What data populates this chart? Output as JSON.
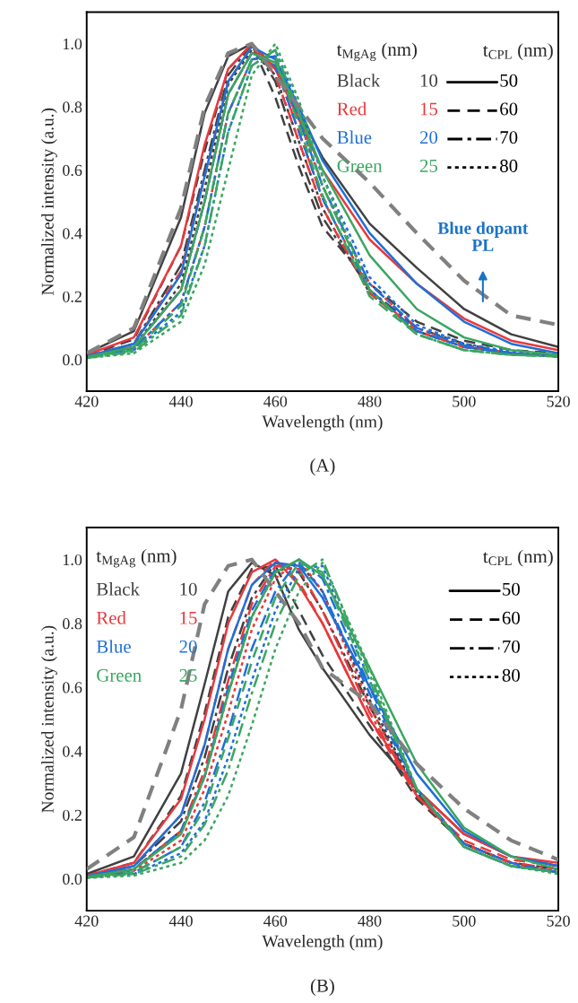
{
  "chart_data": [
    {
      "type": "line",
      "xlabel": "Wavelength (nm)",
      "ylabel": "Normalized intensity (a.u.)",
      "xlim": [
        420,
        520
      ],
      "xticks": [
        420,
        440,
        460,
        480,
        500,
        520
      ],
      "ylim": [
        -0.1,
        1.1
      ],
      "yticks": [
        {
          "value": 0,
          "label": "0.0"
        },
        {
          "value": 0.2,
          "label": "0.2"
        },
        {
          "value": 0.4,
          "label": "0.4"
        },
        {
          "value": 0.6,
          "label": "0.6"
        },
        {
          "value": 0.8,
          "label": "0.8"
        },
        {
          "value": 1,
          "label": "1.0"
        }
      ],
      "x": [
        420,
        430,
        440,
        445,
        450,
        455,
        460,
        465,
        470,
        480,
        490,
        500,
        510,
        520
      ],
      "annotations": [
        "(A)",
        "t$_{MgAg}$ (nm)",
        "t$_{CPL}$ (nm)",
        "Black",
        "10",
        "Red",
        "15",
        "Blue",
        "20",
        "Green",
        "25",
        "50",
        "60",
        "70",
        "80",
        "Blue dopant PL"
      ],
      "series": [
        {
          "color": "#404040",
          "line_style": "solid",
          "values": [
            0.02,
            0.09,
            0.45,
            0.78,
            0.96,
            1.0,
            0.92,
            0.78,
            0.64,
            0.43,
            0.29,
            0.16,
            0.08,
            0.04
          ]
        },
        {
          "color": "#404040",
          "line_style": "dashed",
          "values": [
            0.012,
            0.064,
            0.36,
            0.66,
            0.92,
            0.998,
            0.83,
            0.61,
            0.42,
            0.24,
            0.12,
            0.06,
            0.03,
            0.02
          ]
        },
        {
          "color": "#404040",
          "line_style": "dashdot",
          "values": [
            0.01,
            0.05,
            0.3,
            0.6,
            0.9,
            1.0,
            0.88,
            0.65,
            0.45,
            0.22,
            0.1,
            0.05,
            0.02,
            0.01
          ]
        },
        {
          "color": "#404040",
          "line_style": "dotted",
          "values": [
            0.009,
            0.04,
            0.24,
            0.54,
            0.87,
            0.98,
            0.9,
            0.69,
            0.48,
            0.21,
            0.09,
            0.04,
            0.02,
            0.01
          ]
        },
        {
          "color": "#e8393c",
          "line_style": "solid",
          "values": [
            0.015,
            0.07,
            0.36,
            0.68,
            0.92,
            1.0,
            0.92,
            0.76,
            0.6,
            0.38,
            0.24,
            0.13,
            0.06,
            0.03
          ]
        },
        {
          "color": "#e8393c",
          "line_style": "dashed",
          "values": [
            0.01,
            0.05,
            0.28,
            0.58,
            0.88,
            0.99,
            0.9,
            0.69,
            0.48,
            0.21,
            0.09,
            0.04,
            0.02,
            0.01
          ]
        },
        {
          "color": "#e8393c",
          "line_style": "dashdot",
          "values": [
            0.008,
            0.04,
            0.22,
            0.5,
            0.84,
            0.97,
            0.93,
            0.72,
            0.51,
            0.22,
            0.09,
            0.04,
            0.02,
            0.01
          ]
        },
        {
          "color": "#e8393c",
          "line_style": "dotted",
          "values": [
            0.007,
            0.035,
            0.18,
            0.42,
            0.78,
            0.95,
            0.96,
            0.76,
            0.55,
            0.24,
            0.1,
            0.045,
            0.02,
            0.01
          ]
        },
        {
          "color": "#1f6fd8",
          "line_style": "solid",
          "values": [
            0.01,
            0.05,
            0.27,
            0.58,
            0.88,
            0.99,
            0.95,
            0.8,
            0.63,
            0.4,
            0.24,
            0.12,
            0.05,
            0.02
          ]
        },
        {
          "color": "#1f6fd8",
          "line_style": "dashed",
          "values": [
            0.008,
            0.04,
            0.22,
            0.5,
            0.84,
            0.97,
            0.93,
            0.72,
            0.51,
            0.22,
            0.09,
            0.04,
            0.02,
            0.01
          ]
        },
        {
          "color": "#1f6fd8",
          "line_style": "dashdot",
          "values": [
            0.007,
            0.035,
            0.18,
            0.42,
            0.78,
            0.95,
            0.96,
            0.76,
            0.55,
            0.24,
            0.1,
            0.045,
            0.02,
            0.01
          ]
        },
        {
          "color": "#1f6fd8",
          "line_style": "dotted",
          "values": [
            0.006,
            0.03,
            0.15,
            0.36,
            0.72,
            0.93,
            0.98,
            0.8,
            0.58,
            0.26,
            0.11,
            0.05,
            0.025,
            0.012
          ]
        },
        {
          "color": "#3aa660",
          "line_style": "solid",
          "values": [
            0.008,
            0.04,
            0.22,
            0.5,
            0.84,
            0.97,
            0.94,
            0.78,
            0.6,
            0.33,
            0.16,
            0.07,
            0.03,
            0.015
          ]
        },
        {
          "color": "#3aa660",
          "line_style": "dashed",
          "values": [
            0.006,
            0.03,
            0.17,
            0.42,
            0.78,
            0.95,
            0.96,
            0.74,
            0.52,
            0.2,
            0.08,
            0.03,
            0.015,
            0.01
          ]
        },
        {
          "color": "#3aa660",
          "line_style": "dashdot",
          "values": [
            0.005,
            0.025,
            0.14,
            0.36,
            0.72,
            0.93,
            0.98,
            0.78,
            0.55,
            0.22,
            0.08,
            0.03,
            0.015,
            0.01
          ]
        },
        {
          "color": "#3aa660",
          "line_style": "dotted",
          "values": [
            0.005,
            0.02,
            0.12,
            0.3,
            0.6,
            0.9,
            1.0,
            0.82,
            0.58,
            0.22,
            0.08,
            0.03,
            0.015,
            0.01
          ]
        },
        {
          "color": "#808080",
          "line_style": "dashed",
          "values": [
            0.02,
            0.1,
            0.48,
            0.8,
            0.97,
            1.0,
            0.9,
            0.8,
            0.7,
            0.56,
            0.4,
            0.25,
            0.14,
            0.11
          ]
        }
      ]
    },
    {
      "type": "line",
      "xlabel": "Wavelength (nm)",
      "ylabel": "Normalized intensity (a.u.)",
      "xlim": [
        420,
        520
      ],
      "xticks": [
        420,
        440,
        460,
        480,
        500,
        520
      ],
      "ylim": [
        -0.1,
        1.1
      ],
      "yticks": [
        {
          "value": 0,
          "label": "0.0"
        },
        {
          "value": 0.2,
          "label": "0.2"
        },
        {
          "value": 0.4,
          "label": "0.4"
        },
        {
          "value": 0.6,
          "label": "0.6"
        },
        {
          "value": 0.8,
          "label": "0.8"
        },
        {
          "value": 1,
          "label": "1.0"
        }
      ],
      "x": [
        420,
        430,
        440,
        445,
        450,
        455,
        460,
        465,
        470,
        480,
        490,
        500,
        510,
        520
      ],
      "annotations": [
        "(B)",
        "t$_{MgAg}$ (nm)",
        "t$_{CPL}$ (nm)",
        "Black",
        "10",
        "Red",
        "15",
        "Blue",
        "20",
        "Green",
        "25",
        "50",
        "60",
        "70",
        "80"
      ],
      "series": [
        {
          "color": "#404040",
          "line_style": "solid",
          "values": [
            0.015,
            0.07,
            0.33,
            0.61,
            0.9,
            0.99,
            0.95,
            0.78,
            0.66,
            0.45,
            0.28,
            0.14,
            0.07,
            0.04
          ]
        },
        {
          "color": "#404040",
          "line_style": "dashed",
          "values": [
            0.01,
            0.05,
            0.26,
            0.52,
            0.82,
            0.97,
            0.98,
            0.84,
            0.7,
            0.48,
            0.25,
            0.11,
            0.05,
            0.03
          ]
        },
        {
          "color": "#404040",
          "line_style": "dashdot",
          "values": [
            0.008,
            0.04,
            0.18,
            0.38,
            0.66,
            0.88,
            0.99,
            0.96,
            0.84,
            0.54,
            0.27,
            0.11,
            0.05,
            0.02
          ]
        },
        {
          "color": "#404040",
          "line_style": "dotted",
          "values": [
            0.006,
            0.03,
            0.15,
            0.32,
            0.58,
            0.82,
            0.96,
            0.99,
            0.9,
            0.56,
            0.27,
            0.11,
            0.05,
            0.02
          ]
        },
        {
          "color": "#e8393c",
          "line_style": "solid",
          "values": [
            0.01,
            0.05,
            0.25,
            0.5,
            0.8,
            0.96,
            1.0,
            0.92,
            0.8,
            0.5,
            0.28,
            0.14,
            0.07,
            0.05
          ]
        },
        {
          "color": "#e8393c",
          "line_style": "dashed",
          "values": [
            0.008,
            0.04,
            0.2,
            0.42,
            0.72,
            0.92,
            1.0,
            0.93,
            0.8,
            0.5,
            0.26,
            0.12,
            0.06,
            0.04
          ]
        },
        {
          "color": "#e8393c",
          "line_style": "dashdot",
          "values": [
            0.006,
            0.03,
            0.15,
            0.34,
            0.62,
            0.86,
            0.98,
            0.97,
            0.84,
            0.52,
            0.26,
            0.11,
            0.05,
            0.03
          ]
        },
        {
          "color": "#e8393c",
          "line_style": "dotted",
          "values": [
            0.005,
            0.025,
            0.12,
            0.28,
            0.52,
            0.78,
            0.94,
            1.0,
            0.9,
            0.54,
            0.26,
            0.11,
            0.05,
            0.02
          ]
        },
        {
          "color": "#1f6fd8",
          "line_style": "solid",
          "values": [
            0.008,
            0.04,
            0.2,
            0.42,
            0.72,
            0.92,
            0.99,
            0.98,
            0.88,
            0.6,
            0.33,
            0.15,
            0.07,
            0.04
          ]
        },
        {
          "color": "#1f6fd8",
          "line_style": "dashed",
          "values": [
            0.006,
            0.03,
            0.15,
            0.32,
            0.6,
            0.84,
            0.97,
            0.99,
            0.9,
            0.58,
            0.28,
            0.11,
            0.05,
            0.02
          ]
        },
        {
          "color": "#1f6fd8",
          "line_style": "dashdot",
          "values": [
            0.005,
            0.02,
            0.1,
            0.24,
            0.46,
            0.72,
            0.9,
            1.0,
            0.94,
            0.6,
            0.28,
            0.1,
            0.04,
            0.02
          ]
        },
        {
          "color": "#1f6fd8",
          "line_style": "dotted",
          "values": [
            0.004,
            0.015,
            0.08,
            0.18,
            0.38,
            0.62,
            0.84,
            0.97,
            0.98,
            0.62,
            0.28,
            0.1,
            0.04,
            0.02
          ]
        },
        {
          "color": "#3aa660",
          "line_style": "solid",
          "values": [
            0.006,
            0.03,
            0.14,
            0.32,
            0.58,
            0.82,
            0.96,
            1.0,
            0.95,
            0.66,
            0.36,
            0.16,
            0.07,
            0.03
          ]
        },
        {
          "color": "#3aa660",
          "line_style": "dashed",
          "values": [
            0.005,
            0.02,
            0.1,
            0.22,
            0.44,
            0.68,
            0.88,
            0.99,
            0.96,
            0.62,
            0.28,
            0.1,
            0.04,
            0.02
          ]
        },
        {
          "color": "#3aa660",
          "line_style": "dashdot",
          "values": [
            0.004,
            0.015,
            0.07,
            0.17,
            0.34,
            0.58,
            0.8,
            0.95,
            1.0,
            0.64,
            0.28,
            0.1,
            0.04,
            0.02
          ]
        },
        {
          "color": "#3aa660",
          "line_style": "dotted",
          "values": [
            0.003,
            0.01,
            0.05,
            0.12,
            0.26,
            0.48,
            0.72,
            0.9,
            0.99,
            0.66,
            0.28,
            0.1,
            0.04,
            0.015
          ]
        },
        {
          "color": "#808080",
          "line_style": "dashed",
          "values": [
            0.03,
            0.13,
            0.53,
            0.86,
            0.98,
            1.0,
            0.9,
            0.8,
            0.66,
            0.55,
            0.36,
            0.22,
            0.12,
            0.06
          ]
        }
      ]
    }
  ]
}
